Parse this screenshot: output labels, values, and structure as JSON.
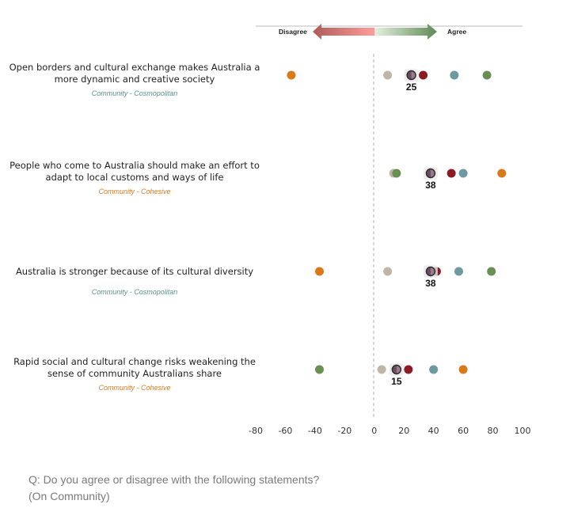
{
  "header": {
    "disagree_label": "Disagree",
    "agree_label": "Agree"
  },
  "question": {
    "line1": "Q: Do you agree or disagree with the following statements?",
    "line2": "(On Community)"
  },
  "colors": {
    "beige": "#bfb6a6",
    "total": "#9b7a8e",
    "red": "#8b1a22",
    "teal": "#6c9aa0",
    "green": "#6a8f55",
    "orange": "#d9791a",
    "cosmopolitan": "#5b8f8c",
    "cohesive": "#d9791a",
    "arrow_red": "#f08080",
    "arrow_green": "#5f8a55"
  },
  "chart_data": {
    "type": "scatter",
    "title": "",
    "xlabel": "",
    "ylabel": "",
    "xlim": [
      -80,
      100
    ],
    "x_ticks": [
      "-80",
      "-60",
      "-40",
      "-20",
      "0",
      "20",
      "40",
      "60",
      "80",
      "100"
    ],
    "x_tick_values": [
      -80,
      -60,
      -40,
      -20,
      0,
      20,
      40,
      60,
      80,
      100
    ],
    "reference_line": 0,
    "grid": false,
    "legend": "none",
    "series_names": [
      "beige",
      "total",
      "red",
      "teal",
      "green",
      "orange"
    ],
    "categories": [
      {
        "statement": [
          "Open borders and cultural exchange makes Australia a",
          "more dynamic and creative society"
        ],
        "segment": "Community - Cosmopolitan",
        "segment_type": "cosmopolitan",
        "total_label": "25",
        "values": {
          "beige": 9,
          "total": 25,
          "red": 33,
          "teal": 54,
          "green": 76,
          "orange": -56
        }
      },
      {
        "statement": [
          "People who come to Australia should make an effort to",
          "adapt to local customs and ways of life"
        ],
        "segment": "Community - Cohesive",
        "segment_type": "cohesive",
        "total_label": "38",
        "values": {
          "beige": 13,
          "green": 15,
          "total": 38,
          "red": 52,
          "teal": 60,
          "orange": 86
        }
      },
      {
        "statement": [
          "Australia is stronger because of its cultural diversity"
        ],
        "segment": "Community - Cosmopolitan",
        "segment_type": "cosmopolitan",
        "total_label": "38",
        "values": {
          "orange": -37,
          "beige": 9,
          "red": 42,
          "total": 38,
          "teal": 57,
          "green": 79
        }
      },
      {
        "statement": [
          "Rapid social and cultural change risks weakening the",
          "sense of community Australians share"
        ],
        "segment": "Community - Cohesive",
        "segment_type": "cohesive",
        "total_label": "15",
        "values": {
          "green": -37,
          "beige": 5,
          "total": 15,
          "red": 23,
          "teal": 40,
          "orange": 60
        }
      }
    ]
  }
}
